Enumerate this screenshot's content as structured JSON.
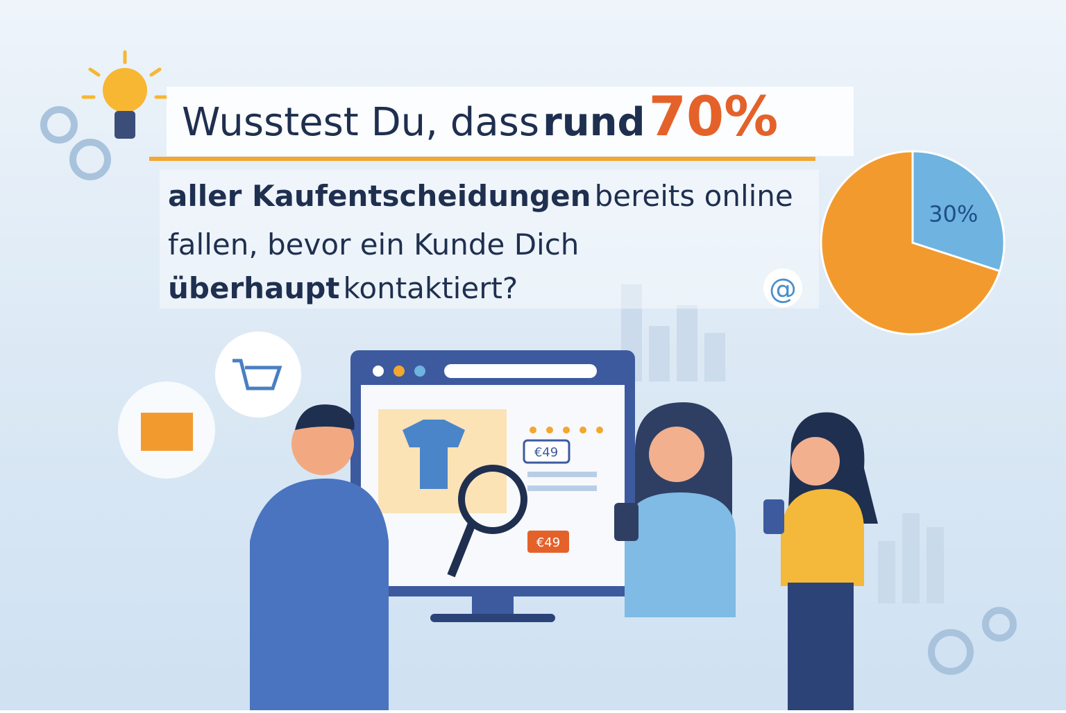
{
  "headline": {
    "lead": "Wusstest Du, dass",
    "bold": "rund",
    "highlight": "70%"
  },
  "body": {
    "line1_bold": "aller Kaufentscheidungen",
    "line1_rest": "bereits online",
    "line2": "fallen, bevor ein Kunde Dich",
    "line3_bold": "überhaupt",
    "line3_rest": "kontaktiert?"
  },
  "pie": {
    "values": [
      70,
      30
    ],
    "colors": [
      "#f39a2e",
      "#6fb3e0"
    ],
    "value_labels": [
      null,
      "30%"
    ]
  },
  "monitor": {
    "price_top": "€49",
    "price_bottom": "€49"
  },
  "icon_at": "@"
}
